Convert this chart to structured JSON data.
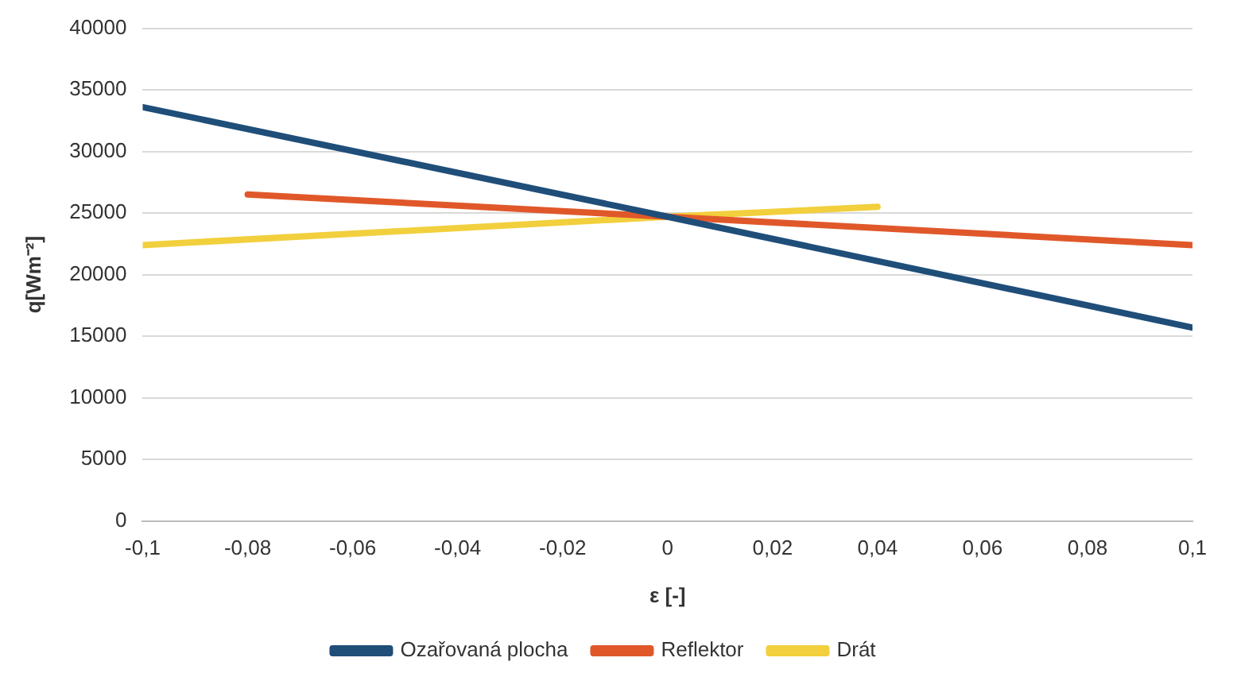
{
  "chart_data": {
    "type": "line",
    "xlabel": "ε [-]",
    "ylabel": "q[Wm⁻²]",
    "xlim": [
      -0.1,
      0.1
    ],
    "xticks": [
      {
        "value": -0.1,
        "label": "-0,1"
      },
      {
        "value": -0.08,
        "label": "-0,08"
      },
      {
        "value": -0.06,
        "label": "-0,06"
      },
      {
        "value": -0.04,
        "label": "-0,04"
      },
      {
        "value": -0.02,
        "label": "-0,02"
      },
      0,
      {
        "value": 0.02,
        "label": "0,02"
      },
      {
        "value": 0.04,
        "label": "0,04"
      },
      {
        "value": 0.06,
        "label": "0,06"
      },
      {
        "value": 0.08,
        "label": "0,08"
      },
      {
        "value": 0.1,
        "label": "0,1"
      }
    ],
    "ylim": [
      0,
      40000
    ],
    "yticks": [
      0,
      5000,
      10000,
      15000,
      20000,
      25000,
      30000,
      35000,
      40000
    ],
    "grid": "y",
    "legend": "bottom",
    "marker": "none",
    "line_style": "solid",
    "series": [
      {
        "name": "Ozařovaná plocha",
        "color": "#1f4e79",
        "x": [
          -0.1,
          0,
          0.1
        ],
        "values": [
          33600,
          24700,
          15700
        ]
      },
      {
        "name": "Reflektor",
        "color": "#e0582a",
        "x": [
          -0.08,
          0,
          0.1
        ],
        "values": [
          26500,
          24700,
          22400
        ]
      },
      {
        "name": "Drát",
        "color": "#f2cf3c",
        "x": [
          -0.1,
          0,
          0.04
        ],
        "values": [
          22400,
          24700,
          25500
        ]
      }
    ]
  }
}
